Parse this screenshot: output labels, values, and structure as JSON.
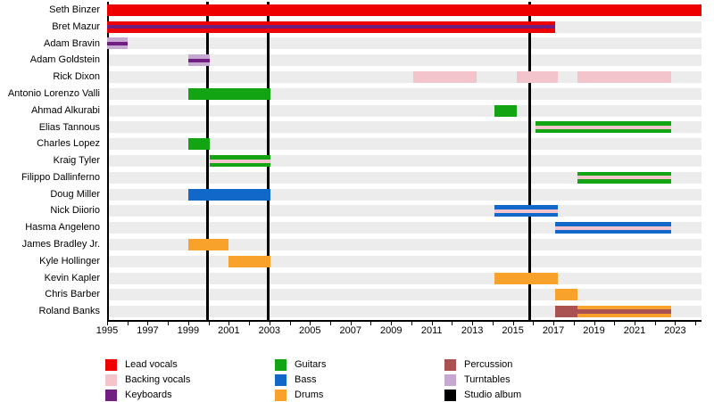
{
  "chart_data": {
    "type": "timeline-gantt",
    "description": "Band members timeline by role",
    "x_axis": {
      "min": 1995.0,
      "max": 2024.3,
      "tick_start": 1995,
      "tick_end": 2024,
      "tick_interval": 1,
      "label_years": [
        1995,
        1997,
        1999,
        2001,
        2003,
        2005,
        2007,
        2009,
        2011,
        2013,
        2015,
        2017,
        2019,
        2021,
        2023
      ]
    },
    "colors": {
      "row_band": "#ececec",
      "axis": "#000000",
      "background": "#ffffff"
    },
    "roles": {
      "lead_vocals": {
        "label": "Lead vocals",
        "color": "#ee0000"
      },
      "backing_vocals": {
        "label": "Backing vocals",
        "color": "#f4c4cd"
      },
      "keyboards": {
        "label": "Keyboards",
        "color": "#701f80"
      },
      "guitars": {
        "label": "Guitars",
        "color": "#12a412"
      },
      "bass": {
        "label": "Bass",
        "color": "#1268c9"
      },
      "drums": {
        "label": "Drums",
        "color": "#f9a22b"
      },
      "percussion": {
        "label": "Percussion",
        "color": "#a95251"
      },
      "turntables": {
        "label": "Turntables",
        "color": "#c6a9d1"
      },
      "studio_album": {
        "label": "Studio album",
        "color": "#000000"
      }
    },
    "album_lines": [
      1999.95,
      2002.95,
      2015.85
    ],
    "members": [
      {
        "name": "Seth Binzer",
        "bars": [
          {
            "start": 1995.0,
            "end": 2024.3,
            "role": "lead_vocals"
          }
        ]
      },
      {
        "name": "Bret Mazur",
        "bars": [
          {
            "start": 1995.0,
            "end": 2017.1,
            "role": "lead_vocals",
            "stripe": "keyboards"
          }
        ]
      },
      {
        "name": "Adam Bravin",
        "bars": [
          {
            "start": 1995.0,
            "end": 1996.0,
            "role": "turntables",
            "stripe": "keyboards"
          }
        ]
      },
      {
        "name": "Adam Goldstein",
        "bars": [
          {
            "start": 1999.0,
            "end": 2000.05,
            "role": "turntables",
            "stripe": "keyboards"
          }
        ]
      },
      {
        "name": "Rick Dixon",
        "bars": [
          {
            "start": 2010.1,
            "end": 2013.2,
            "role": "backing_vocals"
          },
          {
            "start": 2015.2,
            "end": 2017.2,
            "role": "backing_vocals"
          },
          {
            "start": 2018.2,
            "end": 2022.8,
            "role": "backing_vocals"
          }
        ]
      },
      {
        "name": "Antonio Lorenzo Valli",
        "bars": [
          {
            "start": 1999.0,
            "end": 2003.05,
            "role": "guitars"
          }
        ]
      },
      {
        "name": "Ahmad Alkurabi",
        "bars": [
          {
            "start": 2014.1,
            "end": 2015.2,
            "role": "guitars"
          }
        ]
      },
      {
        "name": "Elias Tannous",
        "bars": [
          {
            "start": 2016.1,
            "end": 2022.8,
            "role": "guitars",
            "stripe": "backing_vocals"
          }
        ]
      },
      {
        "name": "Charles Lopez",
        "bars": [
          {
            "start": 1999.0,
            "end": 2000.05,
            "role": "guitars"
          }
        ]
      },
      {
        "name": "Kraig Tyler",
        "bars": [
          {
            "start": 2000.05,
            "end": 2003.05,
            "role": "guitars",
            "stripe": "backing_vocals"
          }
        ]
      },
      {
        "name": "Filippo Dallinferno",
        "bars": [
          {
            "start": 2018.2,
            "end": 2022.8,
            "role": "guitars",
            "stripe": "backing_vocals"
          }
        ]
      },
      {
        "name": "Doug Miller",
        "bars": [
          {
            "start": 1999.0,
            "end": 2003.05,
            "role": "bass"
          }
        ]
      },
      {
        "name": "Nick Diiorio",
        "bars": [
          {
            "start": 2014.1,
            "end": 2017.2,
            "role": "bass",
            "stripe": "backing_vocals"
          }
        ]
      },
      {
        "name": "Hasma Angeleno",
        "bars": [
          {
            "start": 2017.1,
            "end": 2022.8,
            "role": "bass",
            "stripe": "backing_vocals"
          }
        ]
      },
      {
        "name": "James Bradley Jr.",
        "bars": [
          {
            "start": 1999.0,
            "end": 2001.0,
            "role": "drums"
          }
        ]
      },
      {
        "name": "Kyle Hollinger",
        "bars": [
          {
            "start": 2001.0,
            "end": 2003.05,
            "role": "drums"
          }
        ]
      },
      {
        "name": "Kevin Kapler",
        "bars": [
          {
            "start": 2014.1,
            "end": 2017.2,
            "role": "drums"
          }
        ]
      },
      {
        "name": "Chris Barber",
        "bars": [
          {
            "start": 2017.1,
            "end": 2018.2,
            "role": "drums"
          }
        ]
      },
      {
        "name": "Roland Banks",
        "bars": [
          {
            "start": 2017.1,
            "end": 2018.2,
            "role": "percussion"
          },
          {
            "start": 2018.2,
            "end": 2022.8,
            "role": "drums",
            "stripe": "percussion",
            "stripe_thick": true
          }
        ]
      }
    ],
    "legend": {
      "columns": [
        [
          "lead_vocals",
          "backing_vocals",
          "keyboards"
        ],
        [
          "guitars",
          "bass",
          "drums"
        ],
        [
          "percussion",
          "turntables",
          "studio_album"
        ]
      ]
    }
  }
}
